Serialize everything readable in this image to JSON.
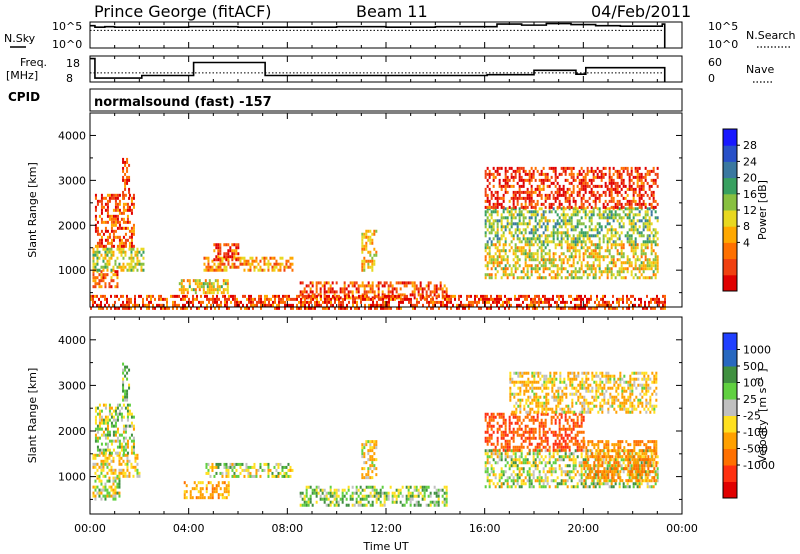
{
  "header": {
    "station": "Prince George (fitACF)",
    "beam": "Beam 11",
    "date": "04/Feb/2011"
  },
  "noise_panel": {
    "left_label": "N.Sky",
    "right_label": "N.Search",
    "left_ticks": [
      "10^5",
      "10^0"
    ],
    "right_ticks": [
      "10^5",
      "10^0"
    ]
  },
  "freq_panel": {
    "left_label_1": "Freq.",
    "left_label_2": "[MHz]",
    "right_label": "Nave",
    "left_ticks": [
      "18",
      "8"
    ],
    "right_ticks": [
      "60",
      "0"
    ]
  },
  "cpid": {
    "label": "CPID",
    "value": "normalsound (fast) -157"
  },
  "chart_data": [
    {
      "type": "line",
      "name": "noise",
      "x_range_hours": [
        0,
        24
      ],
      "nsky_log10": [
        [
          0.0,
          4.3
        ],
        [
          0.2,
          4.0
        ],
        [
          0.6,
          4.1
        ],
        [
          1.0,
          4.0
        ],
        [
          2.0,
          4.0
        ],
        [
          4.0,
          4.1
        ],
        [
          6.0,
          4.0
        ],
        [
          8.0,
          4.0
        ],
        [
          10.0,
          4.1
        ],
        [
          12.0,
          4.0
        ],
        [
          14.0,
          4.1
        ],
        [
          16.0,
          4.1
        ],
        [
          16.5,
          4.6
        ],
        [
          17.5,
          4.4
        ],
        [
          18.5,
          4.7
        ],
        [
          19.5,
          4.5
        ],
        [
          20.5,
          4.3
        ],
        [
          21.5,
          4.2
        ],
        [
          22.5,
          4.2
        ],
        [
          23.2,
          4.6
        ],
        [
          23.3,
          0.0
        ]
      ],
      "nsearch_log10": [
        [
          0.0,
          3.4
        ],
        [
          23.3,
          3.4
        ]
      ]
    },
    {
      "type": "line",
      "name": "frequency",
      "x_range_hours": [
        0,
        24
      ],
      "freq_mhz": [
        [
          0.0,
          17.0
        ],
        [
          0.2,
          9.5
        ],
        [
          2.0,
          9.5
        ],
        [
          2.1,
          10.5
        ],
        [
          4.0,
          10.5
        ],
        [
          4.2,
          15.5
        ],
        [
          7.0,
          15.5
        ],
        [
          7.1,
          10.5
        ],
        [
          16.0,
          10.5
        ],
        [
          16.1,
          10.8
        ],
        [
          17.9,
          10.8
        ],
        [
          18.0,
          12.5
        ],
        [
          19.6,
          12.5
        ],
        [
          19.7,
          11.0
        ],
        [
          20.0,
          11.0
        ],
        [
          20.1,
          13.5
        ],
        [
          23.2,
          13.5
        ],
        [
          23.3,
          8.0
        ]
      ],
      "nave": [
        [
          0.0,
          21
        ],
        [
          23.3,
          21
        ]
      ]
    },
    {
      "type": "heatmap",
      "name": "power",
      "xlabel": "",
      "ylabel": "Slant Range [km]",
      "x_range_hours": [
        0,
        24
      ],
      "y_range_km": [
        180,
        4500
      ],
      "y_ticks": [
        "1000",
        "2000",
        "3000",
        "4000"
      ],
      "colorbar_label": "Power [dB]",
      "colorbar_ticks": [
        "4",
        "8",
        "12",
        "16",
        "20",
        "24",
        "28"
      ],
      "colorbar_colors": [
        "#1818ff",
        "#2850c8",
        "#3a78a0",
        "#38a060",
        "#88c040",
        "#e8d820",
        "#ffa800",
        "#ff7000",
        "#f04010",
        "#e00000"
      ],
      "echo_regions": [
        {
          "t0": 0.1,
          "t1": 1.1,
          "r0": 600,
          "r1": 1000,
          "level": 8
        },
        {
          "t0": 0.1,
          "t1": 2.2,
          "r0": 1000,
          "r1": 1500,
          "level": 16
        },
        {
          "t0": 0.2,
          "t1": 1.8,
          "r0": 1500,
          "r1": 2700,
          "level": 6
        },
        {
          "t0": 1.3,
          "t1": 1.6,
          "r0": 2600,
          "r1": 3500,
          "level": 5
        },
        {
          "t0": 3.6,
          "t1": 5.6,
          "r0": 500,
          "r1": 800,
          "level": 14
        },
        {
          "t0": 4.6,
          "t1": 8.2,
          "r0": 1000,
          "r1": 1300,
          "level": 10
        },
        {
          "t0": 5.0,
          "t1": 6.0,
          "r0": 1250,
          "r1": 1600,
          "level": 5
        },
        {
          "t0": 8.5,
          "t1": 14.5,
          "r0": 350,
          "r1": 750,
          "level": 6
        },
        {
          "t0": 11.0,
          "t1": 11.6,
          "r0": 1000,
          "r1": 1900,
          "level": 12
        },
        {
          "t0": 16.0,
          "t1": 23.0,
          "r0": 800,
          "r1": 1600,
          "level": 14
        },
        {
          "t0": 16.0,
          "t1": 23.0,
          "r0": 1600,
          "r1": 2400,
          "level": 18
        },
        {
          "t0": 16.0,
          "t1": 23.0,
          "r0": 2400,
          "r1": 3300,
          "level": 4
        },
        {
          "t0": 0.0,
          "t1": 23.3,
          "r0": 180,
          "r1": 450,
          "level": 5
        }
      ]
    },
    {
      "type": "heatmap",
      "name": "velocity",
      "xlabel": "Time UT",
      "ylabel": "Slant Range [km]",
      "x_range_hours": [
        0,
        24
      ],
      "x_ticks": [
        "00:00",
        "04:00",
        "08:00",
        "12:00",
        "16:00",
        "20:00",
        "00:00"
      ],
      "y_range_km": [
        180,
        4500
      ],
      "y_ticks": [
        "1000",
        "2000",
        "3000",
        "4000"
      ],
      "colorbar_label": "Velocity",
      "colorbar_unit": "[m s",
      "colorbar_unit_exp": "-1",
      "colorbar_ticks": [
        "1000",
        "500",
        "100",
        "25",
        "-25",
        "-100",
        "-500",
        "-1000"
      ],
      "colorbar_colors": [
        "#2040ff",
        "#2868c0",
        "#409040",
        "#60d040",
        "#c0c0c0",
        "#ffe020",
        "#ffa000",
        "#ff7000",
        "#ff3010",
        "#e00000"
      ],
      "echo_regions": [
        {
          "t0": 0.1,
          "t1": 1.2,
          "r0": 500,
          "r1": 1000,
          "vel": 0
        },
        {
          "t0": 0.1,
          "t1": 2.0,
          "r0": 1000,
          "r1": 1500,
          "vel": -100
        },
        {
          "t0": 0.2,
          "t1": 1.8,
          "r0": 1500,
          "r1": 2600,
          "vel": 0
        },
        {
          "t0": 1.3,
          "t1": 1.6,
          "r0": 2700,
          "r1": 3500,
          "vel": 100
        },
        {
          "t0": 3.8,
          "t1": 5.6,
          "r0": 550,
          "r1": 900,
          "vel": -200
        },
        {
          "t0": 4.6,
          "t1": 8.2,
          "r0": 1000,
          "r1": 1300,
          "vel": 0
        },
        {
          "t0": 8.5,
          "t1": 14.5,
          "r0": 350,
          "r1": 800,
          "vel": 50
        },
        {
          "t0": 11.0,
          "t1": 11.6,
          "r0": 1000,
          "r1": 1800,
          "vel": -100
        },
        {
          "t0": 16.0,
          "t1": 23.0,
          "r0": 800,
          "r1": 1600,
          "vel": 0
        },
        {
          "t0": 16.0,
          "t1": 20.0,
          "r0": 1600,
          "r1": 2400,
          "vel": -500
        },
        {
          "t0": 20.0,
          "t1": 23.0,
          "r0": 900,
          "r1": 1800,
          "vel": -300
        },
        {
          "t0": 17.0,
          "t1": 23.0,
          "r0": 2400,
          "r1": 3300,
          "vel": -100
        }
      ]
    }
  ]
}
